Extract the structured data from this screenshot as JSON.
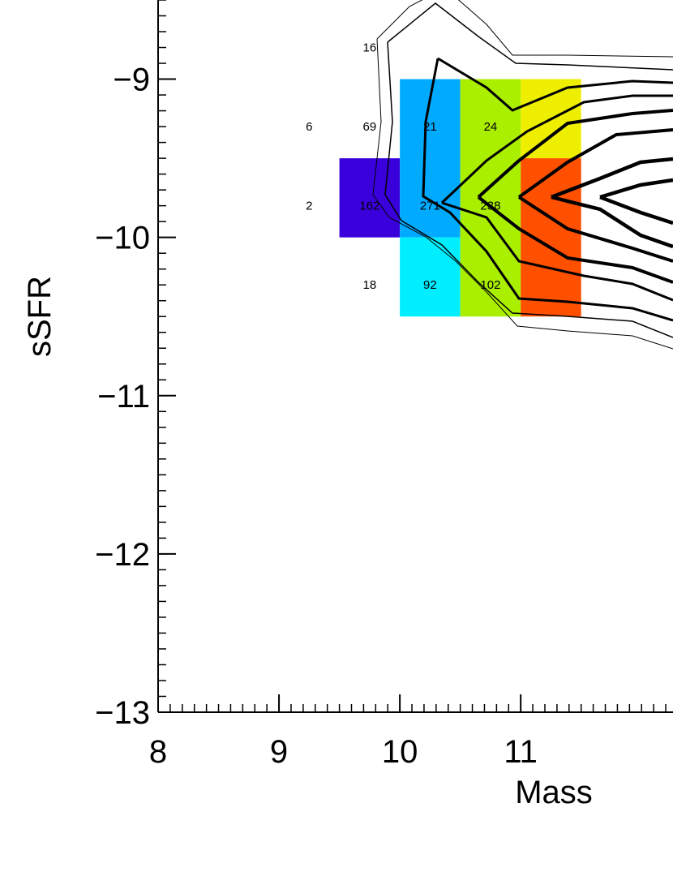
{
  "chart_data": {
    "type": "heatmap",
    "x_label": "Mass",
    "y_label": "sSFR",
    "xlim": [
      8,
      12.26
    ],
    "ylim": [
      -13,
      -8.5
    ],
    "xticks": [
      8,
      9,
      10,
      11
    ],
    "yticks": [
      {
        "value": -13,
        "label": "−13"
      },
      {
        "value": -12,
        "label": "−12"
      },
      {
        "value": -11,
        "label": "−11"
      },
      {
        "value": -10,
        "label": "−10"
      },
      {
        "value": -9,
        "label": "−9"
      }
    ],
    "cells": [
      {
        "xbin": [
          9.5,
          10
        ],
        "ybin": [
          -10,
          -9.5
        ],
        "color": "#3a00dc"
      },
      {
        "xbin": [
          10,
          10.5
        ],
        "ybin": [
          -10,
          -9
        ],
        "color": "#00aaff"
      },
      {
        "xbin": [
          10,
          10.5
        ],
        "ybin": [
          -10.5,
          -10
        ],
        "color": "#00eeff"
      },
      {
        "xbin": [
          10.5,
          11
        ],
        "ybin": [
          -10.5,
          -9
        ],
        "color": "#aaee00"
      },
      {
        "xbin": [
          11,
          11.5
        ],
        "ybin": [
          -9.5,
          -9
        ],
        "color": "#eeee00"
      },
      {
        "xbin": [
          11,
          11.5
        ],
        "ybin": [
          -10.5,
          -9.5
        ],
        "color": "#ff5000"
      }
    ],
    "count_labels": [
      {
        "x": 9.25,
        "y": -9.3,
        "value": 6
      },
      {
        "x": 9.75,
        "y": -9.3,
        "value": 69
      },
      {
        "x": 10.25,
        "y": -9.3,
        "value": 21
      },
      {
        "x": 10.75,
        "y": -9.3,
        "value": 24
      },
      {
        "x": 9.25,
        "y": -9.8,
        "value": 2
      },
      {
        "x": 9.75,
        "y": -9.8,
        "value": 162
      },
      {
        "x": 10.25,
        "y": -9.8,
        "value": 271
      },
      {
        "x": 10.75,
        "y": -9.8,
        "value": 238
      },
      {
        "x": 9.75,
        "y": -10.3,
        "value": 18
      },
      {
        "x": 10.25,
        "y": -10.3,
        "value": 92
      },
      {
        "x": 10.75,
        "y": -10.3,
        "value": 102
      },
      {
        "x": 9.75,
        "y": -8.8,
        "value": 16
      }
    ]
  }
}
